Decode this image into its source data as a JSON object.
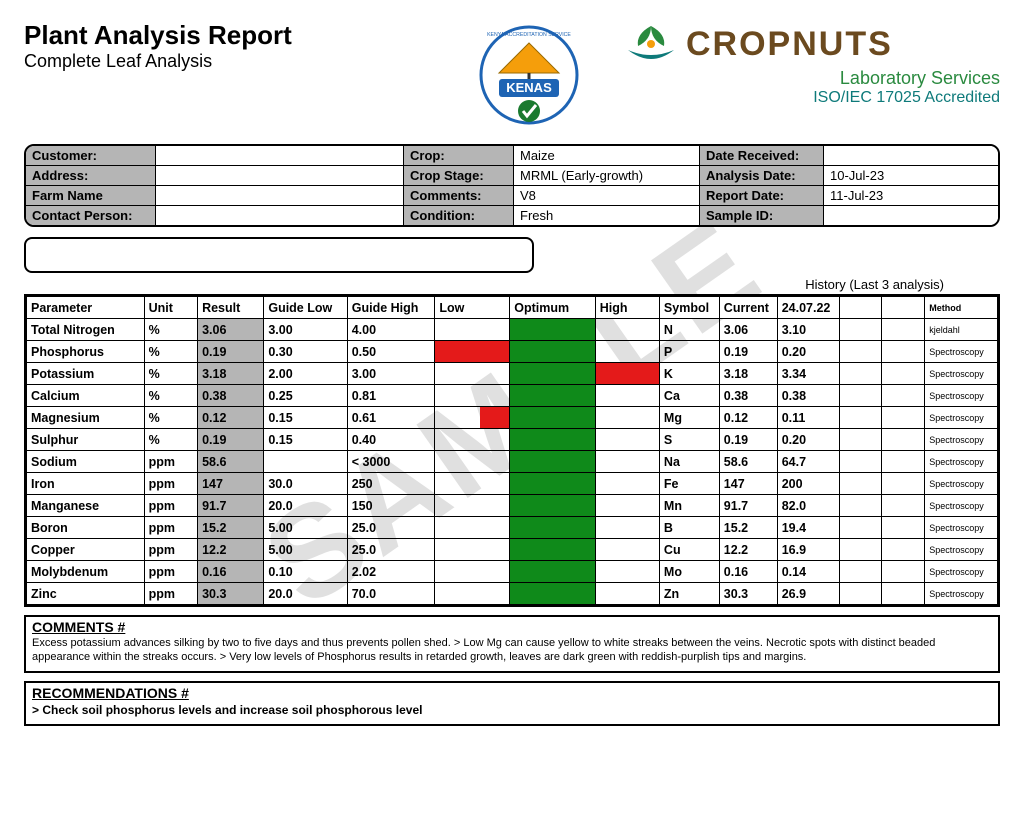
{
  "title": "Plant Analysis Report",
  "subtitle": "Complete Leaf Analysis",
  "watermark": "SAMPLE",
  "colors": {
    "header_grey": "#b5b5b5",
    "bar_green": "#0f8a1a",
    "bar_red": "#e41a1a",
    "cn_brown": "#6b4a1f",
    "cn_green": "#2a8a3f",
    "cn_teal": "#0e7a7a",
    "kenas_orange": "#f59e0b",
    "kenas_blue": "#1e64b4"
  },
  "logos": {
    "kenas_top": "KENYA ACCREDITATION SERVICE",
    "kenas_word": "KENAS",
    "cropnuts_name": "CROPNUTS",
    "cropnuts_sub1": "Laboratory Services",
    "cropnuts_sub2": "ISO/IEC 17025 Accredited"
  },
  "meta": {
    "labels": {
      "customer": "Customer:",
      "address": "Address:",
      "farm": "Farm Name",
      "contact": "Contact Person:",
      "crop": "Crop:",
      "stage": "Crop Stage:",
      "comments": "Comments:",
      "condition": "Condition:",
      "date_received": "Date Received:",
      "analysis_date": "Analysis Date:",
      "report_date": "Report Date:",
      "sample_id": "Sample ID:"
    },
    "values": {
      "customer": "",
      "address": "",
      "farm": "",
      "contact": "",
      "crop": "Maize",
      "stage": "MRML (Early-growth)",
      "comments": "V8",
      "condition": "Fresh",
      "date_received": "",
      "analysis_date": "10-Jul-23",
      "report_date": "11-Jul-23",
      "sample_id": ""
    }
  },
  "history_title": "History (Last 3 analysis)",
  "columns": {
    "parameter": "Parameter",
    "unit": "Unit",
    "result": "Result",
    "guide_low": "Guide Low",
    "guide_high": "Guide High",
    "low": "Low",
    "optimum": "Optimum",
    "high": "High",
    "symbol": "Symbol",
    "current": "Current",
    "h1": "24.07.22",
    "h2": "",
    "h3": "",
    "method": "Method"
  },
  "rows": [
    {
      "param": "Total Nitrogen",
      "unit": "%",
      "result": "3.06",
      "gl": "3.00",
      "gh": "4.00",
      "low": "",
      "opt": "green",
      "high": "",
      "sym": "N",
      "cur": "3.06",
      "h1": "3.10",
      "meth": "kjeldahl"
    },
    {
      "param": "Phosphorus",
      "unit": "%",
      "result": "0.19",
      "gl": "0.30",
      "gh": "0.50",
      "low": "red",
      "opt": "green",
      "high": "",
      "sym": "P",
      "cur": "0.19",
      "h1": "0.20",
      "meth": "Spectroscopy"
    },
    {
      "param": "Potassium",
      "unit": "%",
      "result": "3.18",
      "gl": "2.00",
      "gh": "3.00",
      "low": "",
      "opt": "green",
      "high": "red",
      "sym": "K",
      "cur": "3.18",
      "h1": "3.34",
      "meth": "Spectroscopy"
    },
    {
      "param": "Calcium",
      "unit": "%",
      "result": "0.38",
      "gl": "0.25",
      "gh": "0.81",
      "low": "",
      "opt": "green",
      "high": "",
      "sym": "Ca",
      "cur": "0.38",
      "h1": "0.38",
      "meth": "Spectroscopy"
    },
    {
      "param": "Magnesium",
      "unit": "%",
      "result": "0.12",
      "gl": "0.15",
      "gh": "0.61",
      "low": "red-half",
      "opt": "green",
      "high": "",
      "sym": "Mg",
      "cur": "0.12",
      "h1": "0.11",
      "meth": "Spectroscopy"
    },
    {
      "param": "Sulphur",
      "unit": "%",
      "result": "0.19",
      "gl": "0.15",
      "gh": "0.40",
      "low": "",
      "opt": "green",
      "high": "",
      "sym": "S",
      "cur": "0.19",
      "h1": "0.20",
      "meth": "Spectroscopy"
    },
    {
      "param": "Sodium",
      "unit": "ppm",
      "result": "58.6",
      "gl": "",
      "gh": "< 3000",
      "low": "",
      "opt": "green",
      "high": "",
      "sym": "Na",
      "cur": "58.6",
      "h1": "64.7",
      "meth": "Spectroscopy"
    },
    {
      "param": "Iron",
      "unit": "ppm",
      "result": "147",
      "gl": "30.0",
      "gh": "250",
      "low": "",
      "opt": "green",
      "high": "",
      "sym": "Fe",
      "cur": "147",
      "h1": "200",
      "meth": "Spectroscopy"
    },
    {
      "param": "Manganese",
      "unit": "ppm",
      "result": "91.7",
      "gl": "20.0",
      "gh": "150",
      "low": "",
      "opt": "green",
      "high": "",
      "sym": "Mn",
      "cur": "91.7",
      "h1": "82.0",
      "meth": "Spectroscopy"
    },
    {
      "param": "Boron",
      "unit": "ppm",
      "result": "15.2",
      "gl": "5.00",
      "gh": "25.0",
      "low": "",
      "opt": "green",
      "high": "",
      "sym": "B",
      "cur": "15.2",
      "h1": "19.4",
      "meth": "Spectroscopy"
    },
    {
      "param": "Copper",
      "unit": "ppm",
      "result": "12.2",
      "gl": "5.00",
      "gh": "25.0",
      "low": "",
      "opt": "green",
      "high": "",
      "sym": "Cu",
      "cur": "12.2",
      "h1": "16.9",
      "meth": "Spectroscopy"
    },
    {
      "param": "Molybdenum",
      "unit": "ppm",
      "result": "0.16",
      "gl": "0.10",
      "gh": "2.02",
      "low": "",
      "opt": "green",
      "high": "",
      "sym": "Mo",
      "cur": "0.16",
      "h1": "0.14",
      "meth": "Spectroscopy"
    },
    {
      "param": "Zinc",
      "unit": "ppm",
      "result": "30.3",
      "gl": "20.0",
      "gh": "70.0",
      "low": "",
      "opt": "green",
      "high": "",
      "sym": "Zn",
      "cur": "30.3",
      "h1": "26.9",
      "meth": "Spectroscopy"
    }
  ],
  "comments": {
    "header": "COMMENTS #",
    "body": "Excess potassium advances silking by two to five days and thus prevents pollen shed. > Low Mg can cause yellow to white streaks between the veins. Necrotic spots with distinct beaded appearance within the streaks occurs. > Very low levels of Phosphorus results in retarded growth, leaves are dark green with reddish-purplish tips and margins."
  },
  "recommendations": {
    "header": "RECOMMENDATIONS #",
    "body": " > Check soil phosphorus levels and increase soil phosphorous level"
  }
}
